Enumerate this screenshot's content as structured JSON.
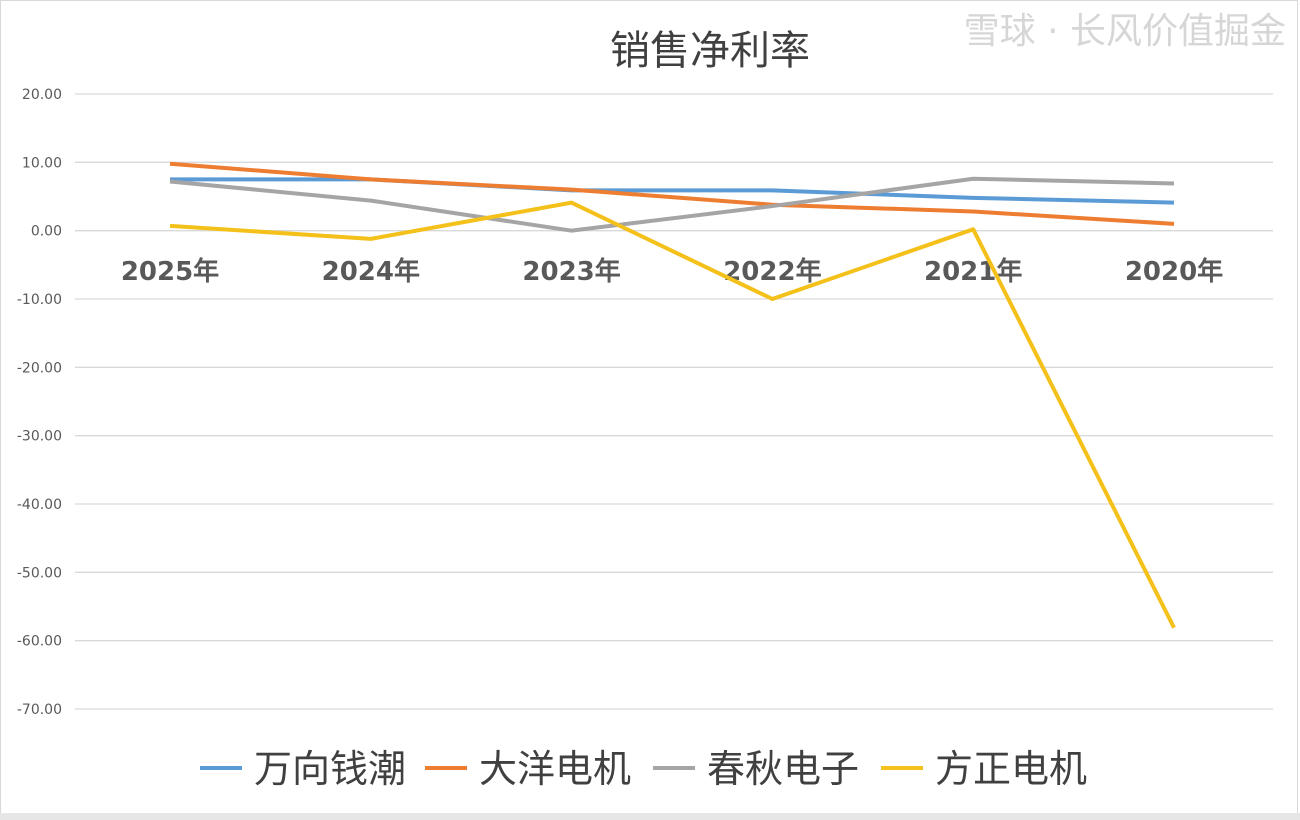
{
  "chart_data": {
    "type": "line",
    "title": "销售净利率",
    "xlabel": "",
    "ylabel": "",
    "categories": [
      "2025年",
      "2024年",
      "2023年",
      "2022年",
      "2021年",
      "2020年"
    ],
    "ylim": [
      -70,
      20
    ],
    "yticks": [
      "20.00",
      "10.00",
      "0.00",
      "-10.00",
      "-20.00",
      "-30.00",
      "-40.00",
      "-50.00",
      "-60.00",
      "-70.00"
    ],
    "grid": true,
    "legend_position": "bottom",
    "series": [
      {
        "name": "万向钱潮",
        "color": "#5b9bd5",
        "values": [
          7.5,
          7.5,
          5.9,
          5.9,
          4.8,
          4.1
        ]
      },
      {
        "name": "大洋电机",
        "color": "#ed7d31",
        "values": [
          9.8,
          7.5,
          6.0,
          3.8,
          2.8,
          1.0
        ]
      },
      {
        "name": "春秋电子",
        "color": "#a5a5a5",
        "values": [
          7.2,
          4.4,
          0.0,
          3.6,
          7.6,
          6.9
        ]
      },
      {
        "name": "方正电机",
        "color": "#f4c01a",
        "values": [
          0.7,
          -1.2,
          4.1,
          -10.0,
          0.2,
          -58.1
        ]
      }
    ]
  },
  "watermark": "雪球 · 长风价值掘金"
}
